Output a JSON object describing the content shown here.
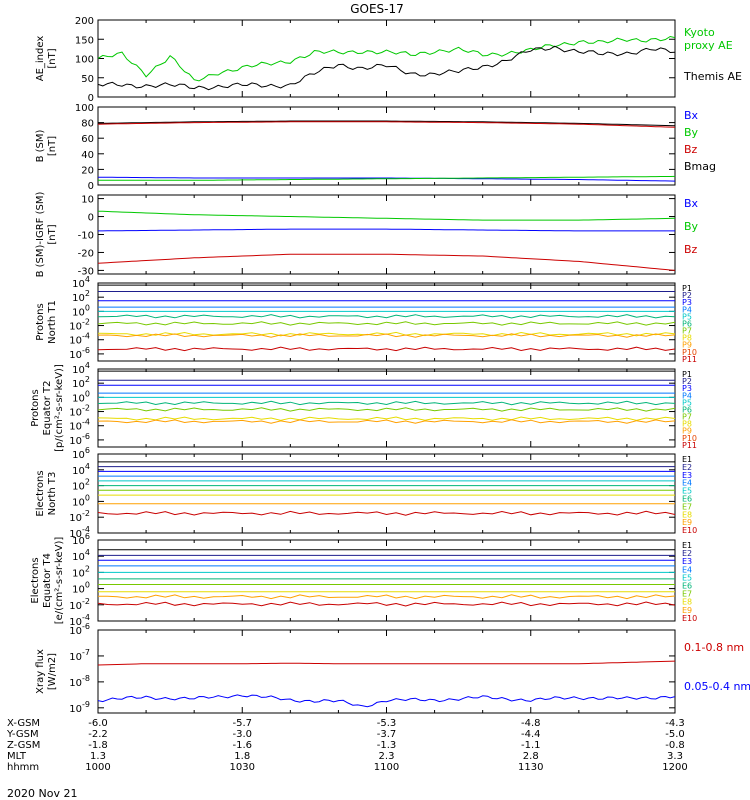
{
  "title": "GOES-17",
  "date": "2020 Nov 21",
  "colors": {
    "black": "#000000",
    "green": "#00c800",
    "blue": "#0000ff",
    "red": "#cc0000",
    "navy": "#1e1e8c"
  },
  "chart_data": [
    {
      "id": "ae_index",
      "type": "line",
      "ylabel": [
        "AE_index",
        "[nT]"
      ],
      "ylim": [
        0,
        200
      ],
      "ytick_values": [
        0,
        50,
        100,
        150,
        200
      ],
      "ytick_labels": [
        "0",
        "50",
        "100",
        "150",
        "200"
      ],
      "legend": [
        {
          "label": "Kyoto",
          "color": "#00c800"
        },
        {
          "label": "proxy AE",
          "color": "#00c800"
        },
        {
          "label": "Themis AE",
          "color": "#000000"
        }
      ],
      "x": [
        0,
        5,
        10,
        15,
        20,
        25,
        30,
        35,
        40,
        45,
        50,
        55,
        60,
        65,
        70,
        75,
        80,
        85,
        90,
        95,
        100,
        105,
        110,
        115,
        120
      ],
      "series": [
        {
          "name": "Kyoto proxy AE",
          "color": "#00c800",
          "values": [
            100,
            110,
            60,
            105,
            40,
            65,
            75,
            85,
            95,
            115,
            115,
            120,
            115,
            110,
            120,
            122,
            110,
            115,
            120,
            135,
            145,
            140,
            150,
            150,
            150
          ]
        },
        {
          "name": "Themis AE",
          "color": "#000000",
          "values": [
            30,
            32,
            30,
            30,
            25,
            28,
            30,
            30,
            32,
            60,
            85,
            75,
            80,
            62,
            60,
            65,
            80,
            95,
            120,
            130,
            118,
            110,
            115,
            125,
            115
          ]
        }
      ]
    },
    {
      "id": "b_sm",
      "type": "line",
      "ylabel": [
        "B (SM)",
        "[nT]"
      ],
      "ylim": [
        0,
        100
      ],
      "ytick_values": [
        0,
        20,
        40,
        60,
        80,
        100
      ],
      "ytick_labels": [
        "0",
        "20",
        "40",
        "60",
        "80",
        "100"
      ],
      "legend": [
        {
          "label": "Bx",
          "color": "#0000ff"
        },
        {
          "label": "By",
          "color": "#00c800"
        },
        {
          "label": "Bz",
          "color": "#cc0000"
        },
        {
          "label": "Bmag",
          "color": "#000000"
        }
      ],
      "x": [
        0,
        20,
        40,
        60,
        80,
        100,
        120
      ],
      "series": [
        {
          "name": "Bmag",
          "color": "#000000",
          "values": [
            79,
            81,
            82,
            82,
            81,
            79,
            76
          ]
        },
        {
          "name": "Bz",
          "color": "#cc0000",
          "values": [
            78,
            80,
            81,
            81,
            80,
            78,
            74
          ]
        },
        {
          "name": "Bx",
          "color": "#0000ff",
          "values": [
            10,
            9,
            9,
            9,
            8,
            7,
            5
          ]
        },
        {
          "name": "By",
          "color": "#00c800",
          "values": [
            6,
            6,
            7,
            8,
            9,
            10,
            11
          ]
        }
      ]
    },
    {
      "id": "b_sm_igrf",
      "type": "line",
      "ylabel": [
        "B (SM)-IGRF (SM)",
        "[nT]"
      ],
      "ylim": [
        -32,
        12
      ],
      "ytick_values": [
        -30,
        -20,
        -10,
        0,
        10
      ],
      "ytick_labels": [
        "-30",
        "-20",
        "-10",
        "0",
        "10"
      ],
      "legend": [
        {
          "label": "Bx",
          "color": "#0000ff"
        },
        {
          "label": "By",
          "color": "#00c800"
        },
        {
          "label": "Bz",
          "color": "#cc0000"
        }
      ],
      "x": [
        0,
        20,
        40,
        60,
        80,
        100,
        120
      ],
      "series": [
        {
          "name": "By",
          "color": "#00c800",
          "values": [
            3,
            1,
            0,
            -1,
            -2,
            -2,
            -1
          ]
        },
        {
          "name": "Bx",
          "color": "#0000ff",
          "values": [
            -8,
            -7.5,
            -7,
            -7,
            -7.5,
            -8,
            -8
          ]
        },
        {
          "name": "Bz",
          "color": "#cc0000",
          "values": [
            -26,
            -23,
            -21,
            -21,
            -22,
            -25,
            -30
          ]
        }
      ]
    },
    {
      "id": "protons_t1",
      "type": "line",
      "log": true,
      "ylabel": [
        "Protons",
        "North T1"
      ],
      "ylim_exp": [
        -7,
        4
      ],
      "tick_exponents": [
        4,
        2,
        0,
        -2,
        -4,
        -6
      ],
      "tick_base": "10",
      "legend_labels": [
        "P1",
        "P2",
        "P3",
        "P4",
        "P5",
        "P6",
        "P7",
        "P8",
        "P9",
        "P10",
        "P11"
      ],
      "channel_colors": [
        "#000000",
        "#1e1e8c",
        "#0000ff",
        "#0078ff",
        "#00c8c8",
        "#00b478",
        "#78c800",
        "#e6dc00",
        "#ffa000",
        "#e64600",
        "#c80000"
      ],
      "channel_levels_exp": [
        3.7,
        2.8,
        1.5,
        0.6,
        0.0,
        -0.7,
        -1.7,
        -3.2,
        -3.4,
        null,
        -5.3
      ]
    },
    {
      "id": "protons_t2",
      "type": "line",
      "log": true,
      "ylabel": [
        "Protons",
        "Equator T2",
        "[p/(cm²-s-sr-keV)]"
      ],
      "ylim_exp": [
        -7,
        4
      ],
      "tick_exponents": [
        4,
        2,
        0,
        -2,
        -4,
        -6
      ],
      "tick_base": "10",
      "legend_labels": [
        "P1",
        "P2",
        "P3",
        "P4",
        "P5",
        "P6",
        "P7",
        "P8",
        "P9",
        "P10",
        "P11"
      ],
      "channel_colors": [
        "#000000",
        "#1e1e8c",
        "#0000ff",
        "#0078ff",
        "#00c8c8",
        "#00b478",
        "#78c800",
        "#e6dc00",
        "#ffa000",
        "#e64600",
        "#c80000"
      ],
      "channel_levels_exp": [
        3.7,
        2.4,
        1.7,
        0.6,
        0.0,
        -0.8,
        -1.7,
        -3.0,
        -3.4,
        null,
        null
      ]
    },
    {
      "id": "electrons_t3",
      "type": "line",
      "log": true,
      "ylabel": [
        "Electrons",
        "North T3"
      ],
      "ylim_exp": [
        -4,
        6
      ],
      "tick_exponents": [
        6,
        4,
        2,
        0,
        -2,
        -4
      ],
      "tick_base": "10",
      "legend_labels": [
        "E1",
        "E2",
        "E3",
        "E4",
        "E5",
        "E6",
        "E7",
        "E8",
        "E9",
        "E10"
      ],
      "channel_colors": [
        "#000000",
        "#1e1e8c",
        "#0000ff",
        "#0078ff",
        "#00c8c8",
        "#00b478",
        "#78c800",
        "#e6dc00",
        "#ffa000",
        "#c80000"
      ],
      "channel_levels_exp": [
        5.0,
        4.4,
        3.8,
        3.2,
        2.6,
        2.0,
        1.4,
        0.8,
        -0.3,
        -1.5
      ]
    },
    {
      "id": "electrons_t4",
      "type": "line",
      "log": true,
      "ylabel": [
        "Electrons",
        "Equator T4",
        "[e/(cm²-s-sr-keV)]"
      ],
      "ylim_exp": [
        -4,
        6
      ],
      "tick_exponents": [
        6,
        4,
        2,
        0,
        -2,
        -4
      ],
      "tick_base": "10",
      "legend_labels": [
        "E1",
        "E2",
        "E3",
        "E4",
        "E5",
        "E6",
        "E7",
        "E8",
        "E9",
        "E10"
      ],
      "channel_colors": [
        "#000000",
        "#1e1e8c",
        "#0000ff",
        "#0078ff",
        "#00c8c8",
        "#00b478",
        "#78c800",
        "#e6dc00",
        "#ffa000",
        "#c80000"
      ],
      "channel_levels_exp": [
        4.8,
        4.1,
        3.5,
        2.8,
        2.0,
        1.2,
        0.5,
        -0.4,
        -1.0,
        -1.9
      ]
    },
    {
      "id": "xray_flux",
      "type": "line",
      "log": true,
      "ylabel": [
        "Xray flux",
        "[W/m2]"
      ],
      "ylim_exp": [
        -9.2,
        -6
      ],
      "tick_exponents": [
        -6,
        -7,
        -8,
        -9
      ],
      "tick_base": "10",
      "legend": [
        {
          "label": "0.1-0.8 nm",
          "color": "#cc0000"
        },
        {
          "label": "0.05-0.4 nm",
          "color": "#0000ff"
        }
      ],
      "x": [
        0,
        10,
        20,
        30,
        40,
        50,
        55,
        60,
        70,
        80,
        90,
        100,
        110,
        120
      ],
      "series": [
        {
          "name": "0.1-0.8 nm",
          "color": "#cc0000",
          "values_exp": [
            -7.35,
            -7.3,
            -7.3,
            -7.3,
            -7.28,
            -7.3,
            -7.3,
            -7.3,
            -7.3,
            -7.3,
            -7.3,
            -7.3,
            -7.25,
            -7.2
          ]
        },
        {
          "name": "0.05-0.4 nm",
          "color": "#0000ff",
          "values_exp": [
            -8.7,
            -8.6,
            -8.65,
            -8.5,
            -8.7,
            -8.75,
            -8.95,
            -8.7,
            -8.7,
            -8.6,
            -8.7,
            -8.6,
            -8.65,
            -8.55
          ]
        }
      ]
    }
  ],
  "x_axis": {
    "rows": [
      {
        "label": "X-GSM",
        "values": [
          "-6.0",
          "-5.7",
          "-5.3",
          "-4.8",
          "-4.3"
        ]
      },
      {
        "label": "Y-GSM",
        "values": [
          "-2.2",
          "-3.0",
          "-3.7",
          "-4.4",
          "-5.0"
        ]
      },
      {
        "label": "Z-GSM",
        "values": [
          "-1.8",
          "-1.6",
          "-1.3",
          "-1.1",
          "-0.8"
        ]
      },
      {
        "label": "MLT",
        "values": [
          "1.3",
          "1.8",
          "2.3",
          "2.8",
          "3.3"
        ]
      },
      {
        "label": "hhmm",
        "values": [
          "1000",
          "1030",
          "1100",
          "1130",
          "1200"
        ]
      }
    ],
    "minutes": [
      0,
      30,
      60,
      90,
      120
    ]
  }
}
